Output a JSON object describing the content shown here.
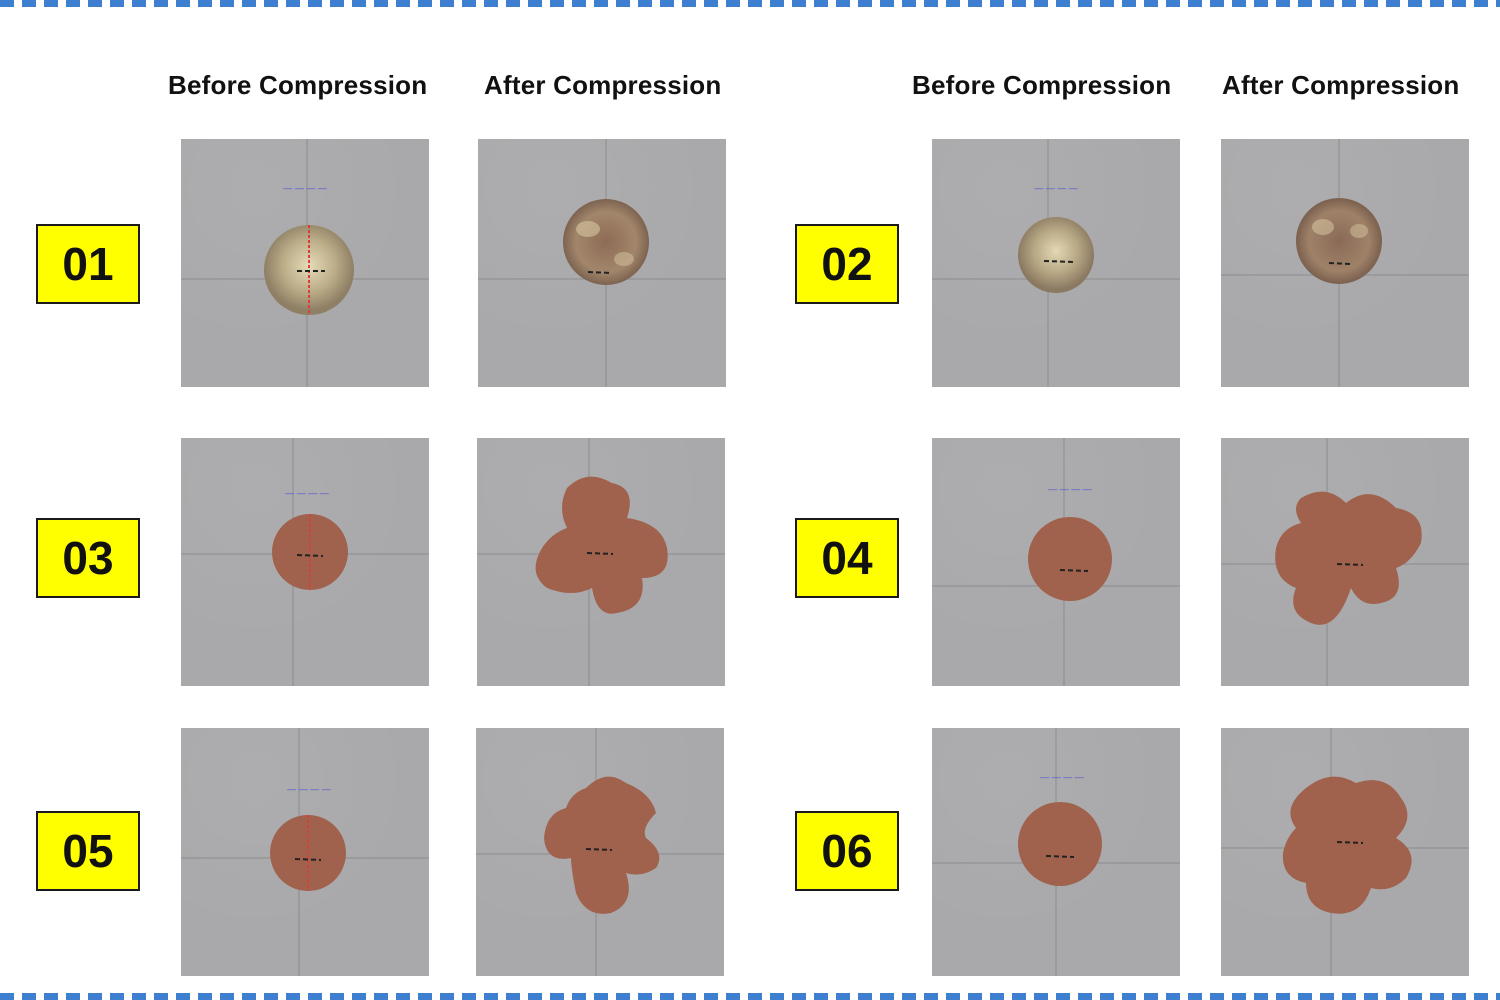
{
  "headers": {
    "left_before": "Before Compression",
    "left_after": "After Compression",
    "right_before": "Before Compression",
    "right_after": "After Compression"
  },
  "samples": [
    {
      "id": "01",
      "before_stage": "before",
      "after_stage": "after"
    },
    {
      "id": "02",
      "before_stage": "before",
      "after_stage": "after"
    },
    {
      "id": "03",
      "before_stage": "before",
      "after_stage": "after"
    },
    {
      "id": "04",
      "before_stage": "before",
      "after_stage": "after"
    },
    {
      "id": "05",
      "before_stage": "before",
      "after_stage": "after"
    },
    {
      "id": "06",
      "before_stage": "before",
      "after_stage": "after"
    }
  ],
  "colors": {
    "label_bg": "#ffff00",
    "border_dash": "#3f7fcf",
    "particle_light": "#b7aa86",
    "particle_brown": "#a0624d",
    "photo_bg": "#a9a9ab"
  }
}
